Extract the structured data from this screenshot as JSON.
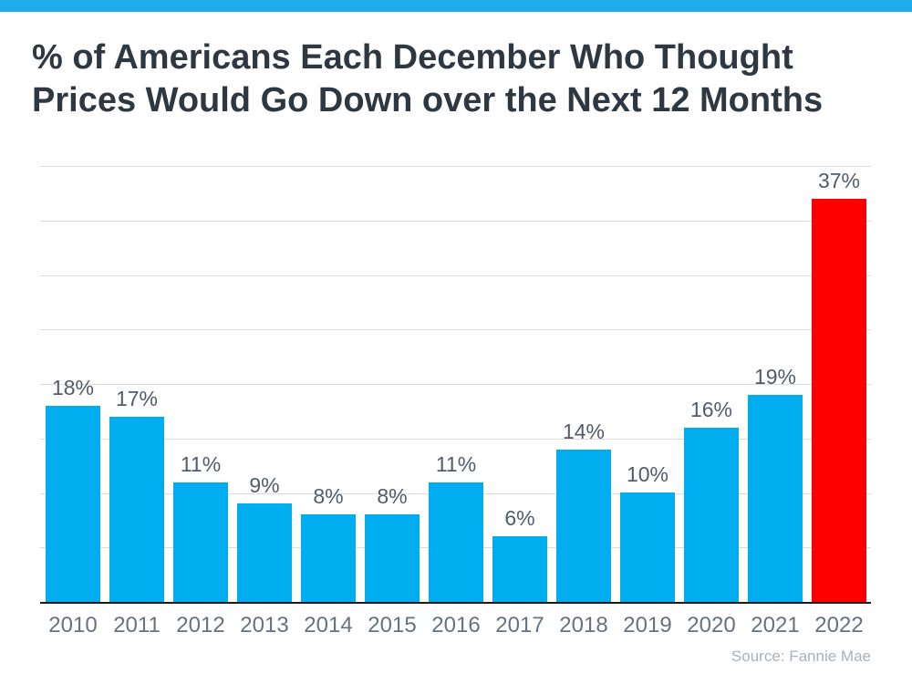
{
  "page": {
    "background": "#FFFFFF",
    "top_strip_color": "#1EACEC"
  },
  "title": {
    "line1": "% of Americans Each December Who Thought",
    "line2": "Prices Would Go Down over the Next 12 Months",
    "color": "#2D3843"
  },
  "source": {
    "text": "Source: Fannie Mae",
    "color": "#A9B1BB"
  },
  "chart_data": {
    "type": "bar",
    "title": "% of Americans Each December Who Thought Prices Would Go Down over the Next 12 Months",
    "categories": [
      "2010",
      "2011",
      "2012",
      "2013",
      "2014",
      "2015",
      "2016",
      "2017",
      "2018",
      "2019",
      "2020",
      "2021",
      "2022"
    ],
    "values": [
      18,
      17,
      11,
      9,
      8,
      8,
      11,
      6,
      14,
      10,
      16,
      19,
      37
    ],
    "value_labels": [
      "18%",
      "17%",
      "11%",
      "9%",
      "8%",
      "8%",
      "11%",
      "6%",
      "14%",
      "10%",
      "16%",
      "19%",
      "37%"
    ],
    "xlabel": "",
    "ylabel": "",
    "ylim": [
      0,
      40
    ],
    "gridline_interval": 5,
    "grid": true,
    "legend": false,
    "bar_color": "#00ADEF",
    "highlight_index": 12,
    "highlight_color": "#FF0000",
    "value_label_color": "#4F5C6C",
    "tick_label_color": "#67727F",
    "gridline_color": "#DCDCDC",
    "axis_line_color": "#1A1A1A"
  }
}
